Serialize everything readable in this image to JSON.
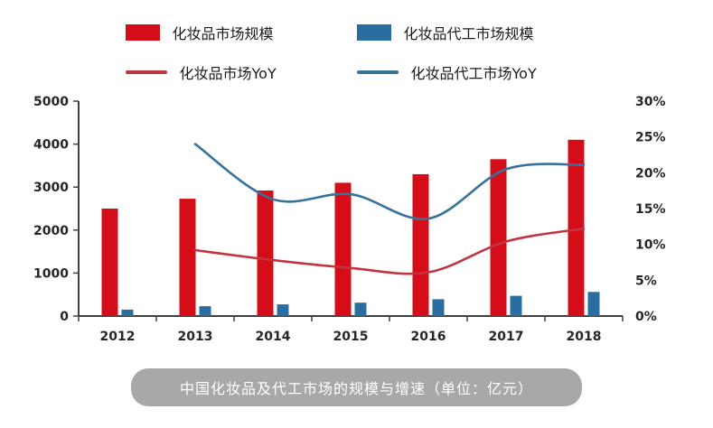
{
  "legend": {
    "items": [
      {
        "key": "cosmetics-market-size",
        "label": "化妆品市场规模",
        "type": "bar",
        "color": "#d40d18"
      },
      {
        "key": "cosmetics-oem-market-size",
        "label": "化妆品代工市场规模",
        "type": "bar",
        "color": "#2a6d9f"
      },
      {
        "key": "cosmetics-market-yoy",
        "label": "化妆品市场YoY",
        "type": "line",
        "color": "#c13540"
      },
      {
        "key": "cosmetics-oem-market-yoy",
        "label": "化妆品代工市场YoY",
        "type": "line",
        "color": "#38719a"
      }
    ]
  },
  "title": {
    "text": "中国化妆品及代工市场的规模与增速（单位：亿元）"
  },
  "chart_data": {
    "type": "bar+line",
    "title": "中国化妆品及代工市场的规模与增速（单位：亿元）",
    "categories": [
      "2012",
      "2013",
      "2014",
      "2015",
      "2016",
      "2017",
      "2018"
    ],
    "bar_series": [
      {
        "key": "cosmetics-market-size",
        "name": "化妆品市场规模",
        "axis": "left",
        "color": "#d40d18",
        "values": [
          2500,
          2730,
          2920,
          3100,
          3300,
          3650,
          4100
        ]
      },
      {
        "key": "cosmetics-oem-market-size",
        "name": "化妆品代工市场规模",
        "axis": "left",
        "color": "#2a6d9f",
        "values": [
          150,
          230,
          270,
          310,
          390,
          470,
          560
        ]
      }
    ],
    "line_series": [
      {
        "key": "cosmetics-market-yoy",
        "name": "化妆品市场YoY",
        "axis": "right",
        "color": "#c13540",
        "values": [
          null,
          9.2,
          7.8,
          6.7,
          6.1,
          10.4,
          12.2
        ]
      },
      {
        "key": "cosmetics-oem-market-yoy",
        "name": "化妆品代工市场YoY",
        "axis": "right",
        "color": "#38719a",
        "values": [
          null,
          24.0,
          16.3,
          17.0,
          13.6,
          20.5,
          21.1
        ]
      }
    ],
    "left_axis": {
      "min": 0,
      "max": 5000,
      "step": 1000,
      "tick_labels": [
        "0",
        "1000",
        "2000",
        "3000",
        "4000",
        "5000"
      ]
    },
    "right_axis": {
      "min": 0,
      "max": 30,
      "step": 5,
      "tick_labels": [
        "0%",
        "5%",
        "10%",
        "15%",
        "20%",
        "25%",
        "30%"
      ]
    },
    "grid": false,
    "legend_position": "top",
    "axis_color": "#3f3f3f"
  }
}
